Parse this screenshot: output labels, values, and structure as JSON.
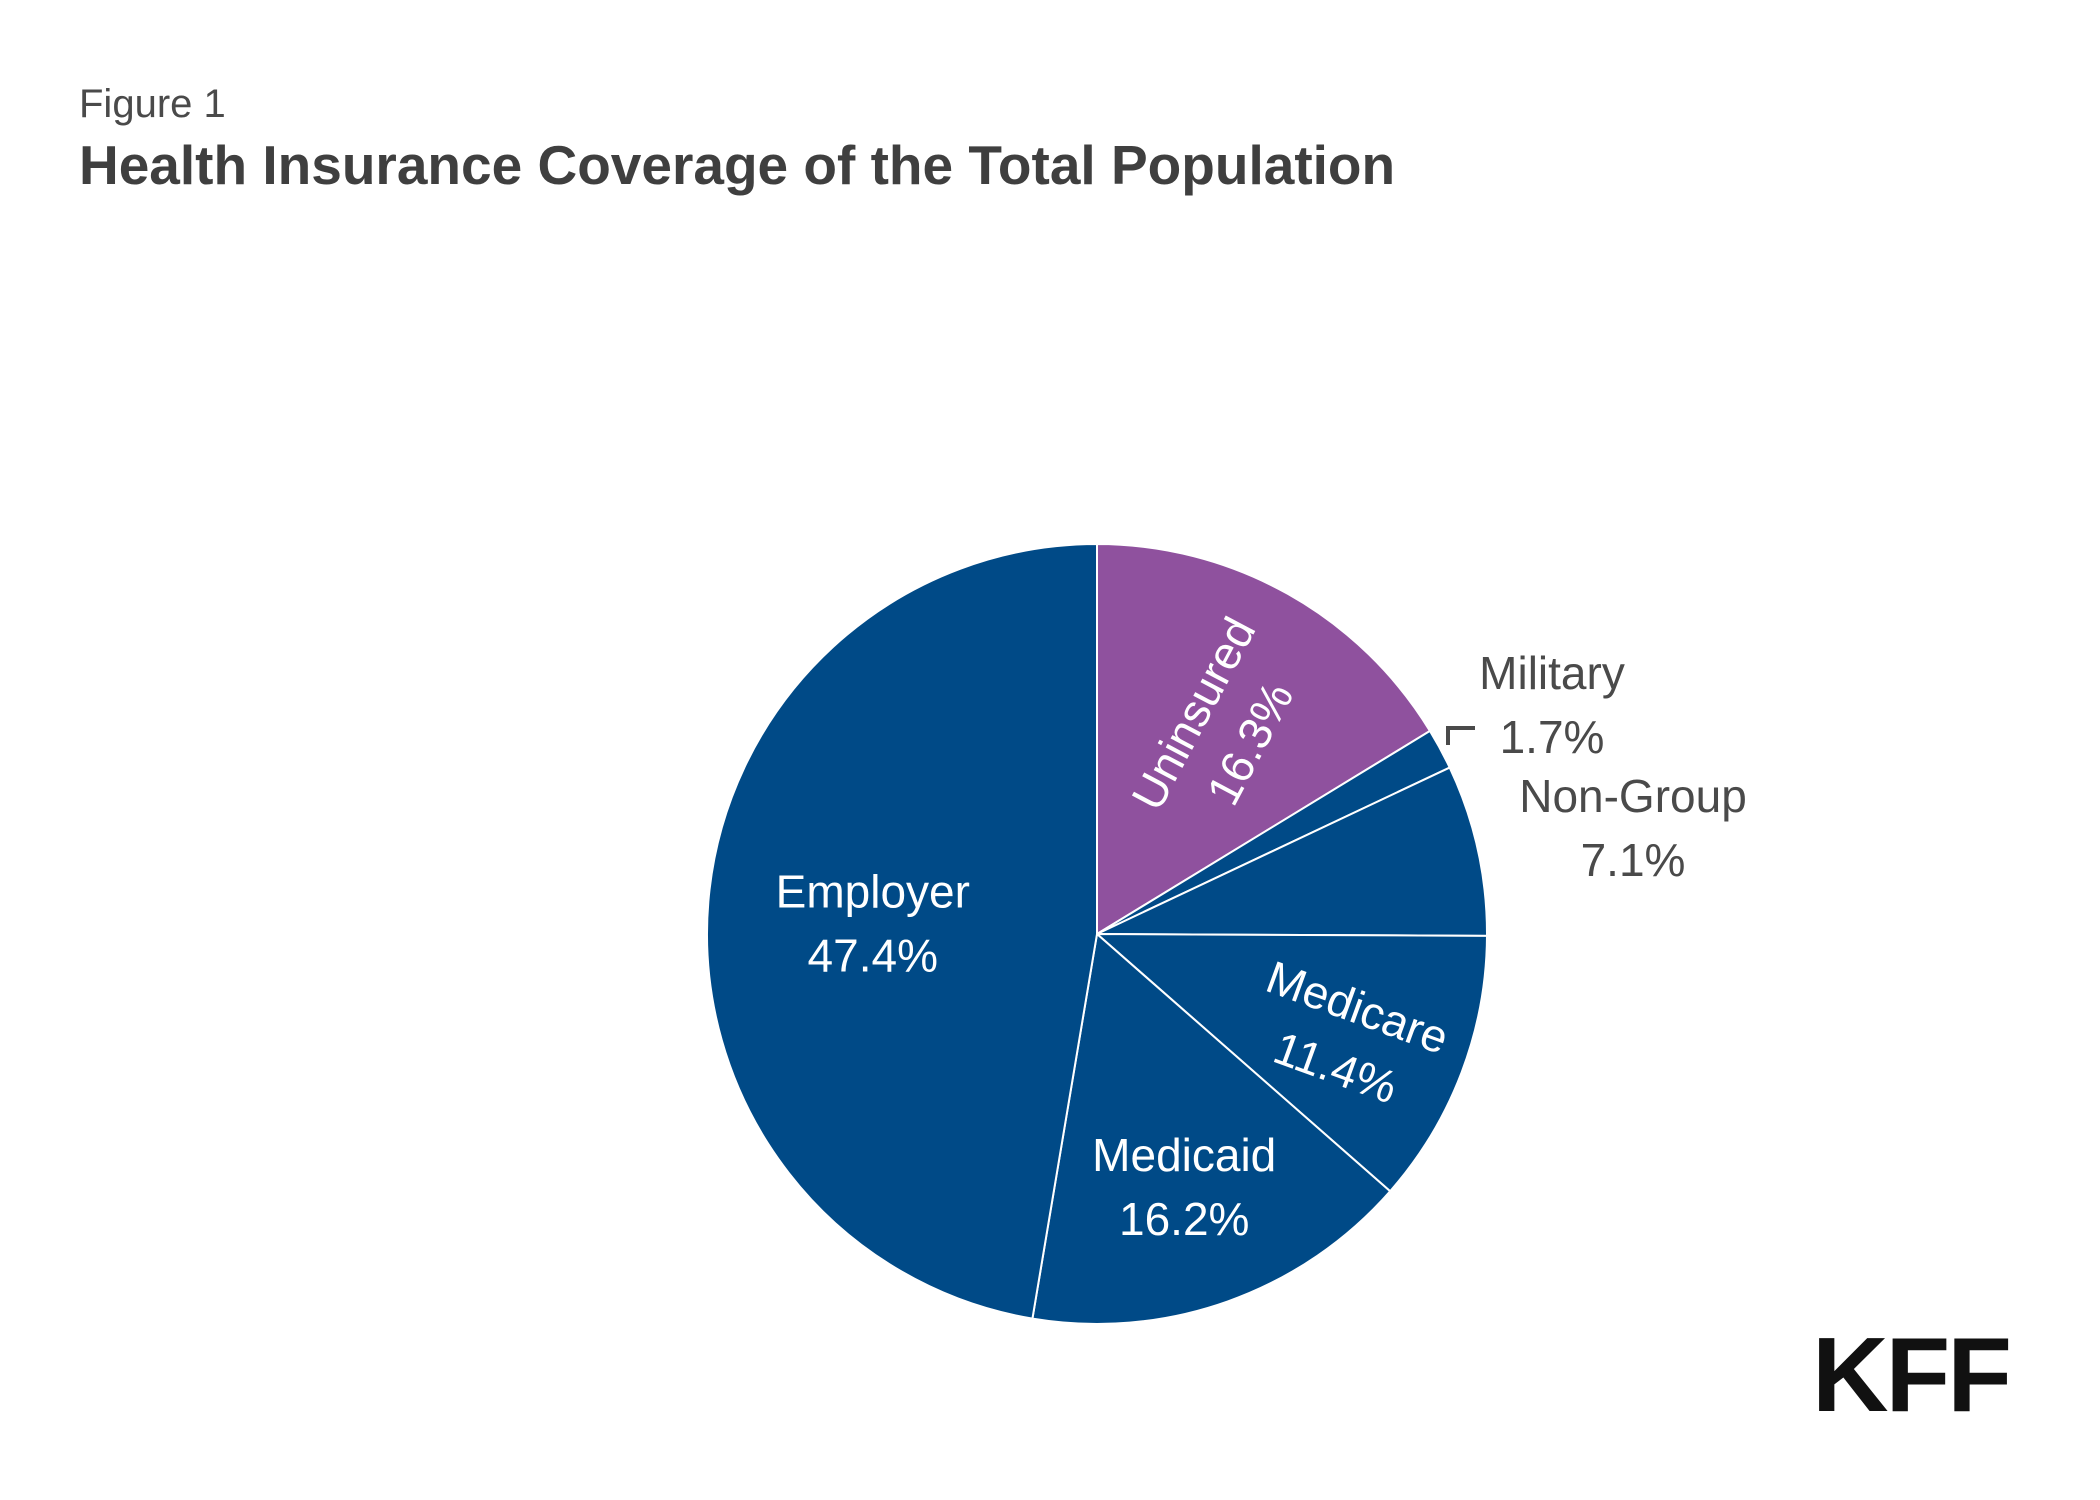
{
  "header": {
    "figure_label": "Figure 1",
    "title": "Health Insurance Coverage of the Total Population"
  },
  "chart_data": {
    "type": "pie",
    "title": "Health Insurance Coverage of the Total Population",
    "start_angle_deg": 0,
    "direction": "clockwise",
    "slices": [
      {
        "label": "Uninsured",
        "value": 16.3,
        "display": "16.3%",
        "color": "#8f519e"
      },
      {
        "label": "Military",
        "value": 1.7,
        "display": "1.7%",
        "color": "#004a87"
      },
      {
        "label": "Non-Group",
        "value": 7.1,
        "display": "7.1%",
        "color": "#004a87"
      },
      {
        "label": "Medicare",
        "value": 11.4,
        "display": "11.4%",
        "color": "#004a87"
      },
      {
        "label": "Medicaid",
        "value": 16.2,
        "display": "16.2%",
        "color": "#004a87"
      },
      {
        "label": "Employer",
        "value": 47.4,
        "display": "47.4%",
        "color": "#004a87"
      }
    ],
    "slice_border_color": "#ffffff",
    "inside_label_color": "#ffffff",
    "outside_label_color": "#4a4a4a"
  },
  "logo": {
    "text": "KFF"
  }
}
